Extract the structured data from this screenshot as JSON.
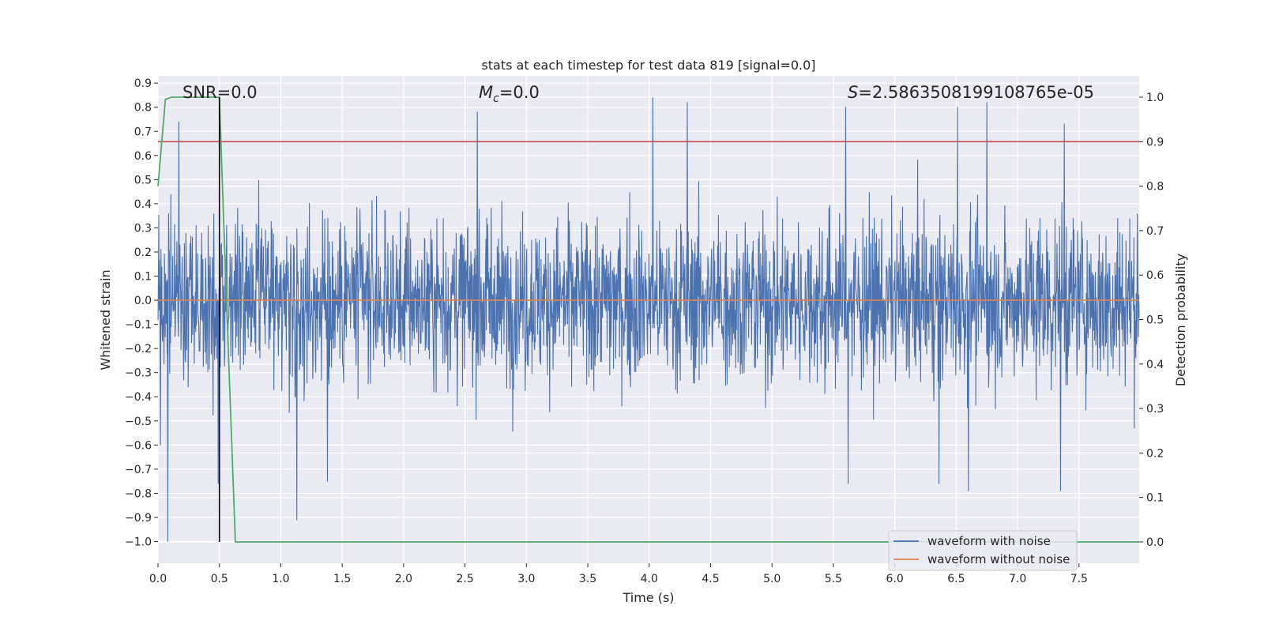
{
  "chart_data": {
    "type": "line",
    "title": "stats at each timestep for test data 819 [signal=0.0]",
    "xlabel": "Time (s)",
    "ylabel_left": "Whitened strain",
    "ylabel_right": "Detection probability",
    "xlim": [
      0.0,
      7.99
    ],
    "ylim_left": [
      -1.09,
      0.93
    ],
    "ylim_right": [
      -0.048,
      1.048
    ],
    "x_ticks": [
      "0.0",
      "0.5",
      "1.0",
      "1.5",
      "2.0",
      "2.5",
      "3.0",
      "3.5",
      "4.0",
      "4.5",
      "5.0",
      "5.5",
      "6.0",
      "6.5",
      "7.0",
      "7.5"
    ],
    "y_left_ticks": [
      "0.9",
      "0.8",
      "0.7",
      "0.6",
      "0.5",
      "0.4",
      "0.3",
      "0.2",
      "0.1",
      "0.0",
      "−0.1",
      "−0.2",
      "−0.3",
      "−0.4",
      "−0.5",
      "−0.6",
      "−0.7",
      "−0.8",
      "−0.9",
      "−1.0"
    ],
    "y_right_ticks": [
      "0.0",
      "0.1",
      "0.2",
      "0.3",
      "0.4",
      "0.5",
      "0.6",
      "0.7",
      "0.8",
      "0.9",
      "1.0"
    ],
    "grid": true,
    "legend_placement": "lower-right",
    "annotations": {
      "snr": "SNR=0.0",
      "mc_symbol": "M",
      "mc_sub": "c",
      "mc_value": "=0.0",
      "s_symbol": "S",
      "s_value": "=2.5863508199108765e-05"
    },
    "series": [
      {
        "name": "waveform with noise",
        "color": "#4c72b0",
        "note_shape": "dense noise, typical amplitude within about ±0.3 with spikes",
        "spikes": [
          {
            "x": 0.02,
            "y": -0.6
          },
          {
            "x": 0.08,
            "y": -1.0
          },
          {
            "x": 0.17,
            "y": 0.74
          },
          {
            "x": 0.49,
            "y": -0.76
          },
          {
            "x": 1.13,
            "y": -0.91
          },
          {
            "x": 1.38,
            "y": -0.75
          },
          {
            "x": 2.6,
            "y": 0.78
          },
          {
            "x": 4.03,
            "y": 0.84
          },
          {
            "x": 4.31,
            "y": 0.82
          },
          {
            "x": 5.6,
            "y": 0.8
          },
          {
            "x": 5.62,
            "y": -0.76
          },
          {
            "x": 6.36,
            "y": -0.76
          },
          {
            "x": 6.51,
            "y": 0.8
          },
          {
            "x": 6.6,
            "y": -0.79
          },
          {
            "x": 6.75,
            "y": 0.82
          },
          {
            "x": 7.35,
            "y": -0.79
          },
          {
            "x": 7.38,
            "y": 0.73
          }
        ]
      },
      {
        "name": "waveform without noise",
        "color": "#dd8452",
        "x": [
          0.0,
          7.99
        ],
        "y": [
          0.0,
          0.0
        ]
      },
      {
        "color": "#55a868",
        "axis": "right",
        "x": [
          0.0,
          0.06,
          0.11,
          0.5,
          0.55,
          0.63,
          7.99
        ],
        "y": [
          0.8,
          0.995,
          1.0,
          1.0,
          0.6,
          0.0,
          0.0
        ]
      }
    ],
    "threshold_line": {
      "color": "#c44e52",
      "axis": "right",
      "value": 0.9
    },
    "event_marker": {
      "color": "#000000",
      "x": 0.5
    }
  }
}
